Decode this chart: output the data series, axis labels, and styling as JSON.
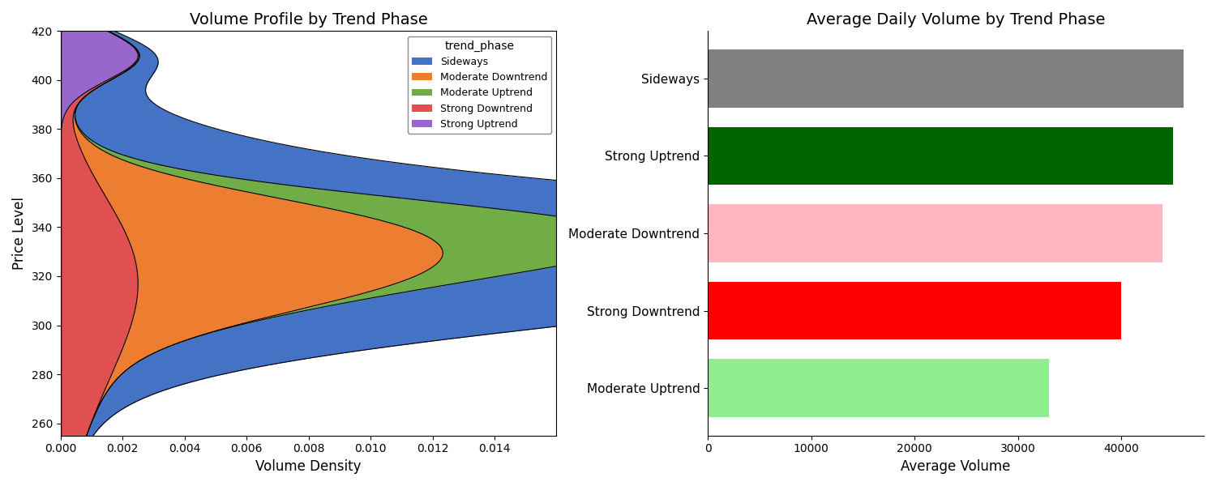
{
  "left_title": "Volume Profile by Trend Phase",
  "right_title": "Average Daily Volume by Trend Phase",
  "left_xlabel": "Volume Density",
  "left_ylabel": "Price Level",
  "right_xlabel": "Average Volume",
  "price_range": [
    255,
    420
  ],
  "phase_colors": {
    "Sideways": "#4472c4",
    "Moderate Downtrend": "#ed7d31",
    "Moderate Uptrend": "#70ad47",
    "Strong Downtrend": "#e05050",
    "Strong Uptrend": "#9966cc"
  },
  "bar_colors": {
    "Sideways": "#808080",
    "Strong Uptrend": "#006400",
    "Moderate Downtrend": "#ffb6c1",
    "Strong Downtrend": "#ff0000",
    "Moderate Uptrend": "#90ee90"
  },
  "bar_order": [
    "Sideways",
    "Strong Uptrend",
    "Moderate Downtrend",
    "Strong Downtrend",
    "Moderate Uptrend"
  ],
  "bar_values": {
    "Sideways": 46000,
    "Strong Uptrend": 45000,
    "Moderate Downtrend": 44000,
    "Strong Downtrend": 40000,
    "Moderate Uptrend": 33000
  },
  "legend_order": [
    "Sideways",
    "Moderate Downtrend",
    "Moderate Uptrend",
    "Strong Downtrend",
    "Strong Uptrend"
  ],
  "stack_order": [
    "Strong Uptrend",
    "Strong Downtrend",
    "Moderate Downtrend",
    "Moderate Uptrend",
    "Sideways"
  ]
}
